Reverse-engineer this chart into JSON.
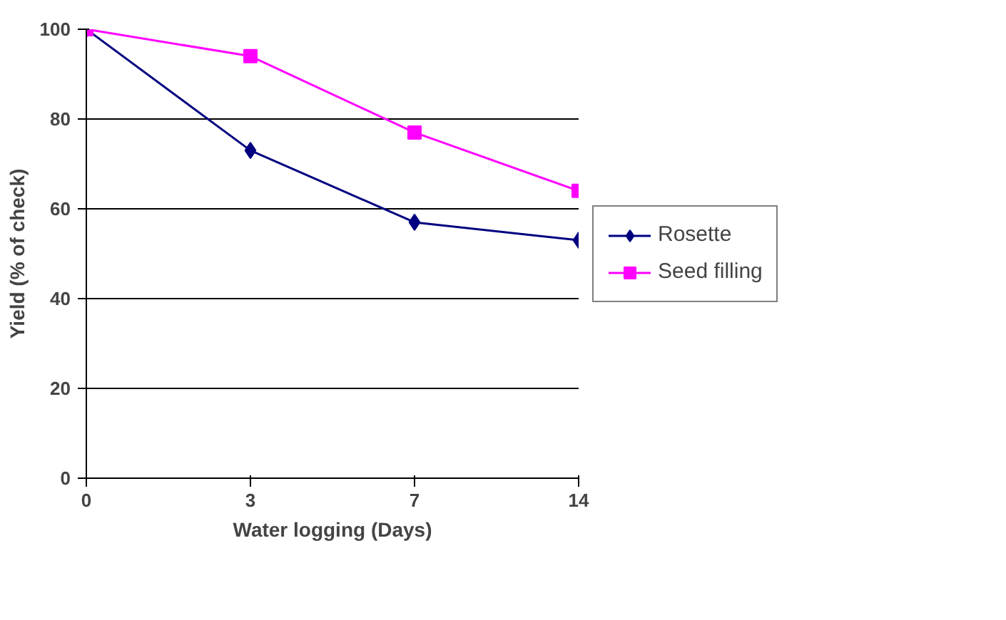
{
  "chart_data": {
    "type": "line",
    "xlabel": "Water logging (Days)",
    "ylabel": "Yield (% of check)",
    "categories": [
      "0",
      "3",
      "7",
      "14"
    ],
    "series": [
      {
        "name": "Rosette",
        "color": "#000080",
        "marker": "diamond",
        "values": [
          100,
          73,
          57,
          53
        ]
      },
      {
        "name": "Seed filling",
        "color": "#ff00ff",
        "marker": "square",
        "values": [
          100,
          94,
          77,
          64
        ]
      }
    ],
    "ylim": [
      0,
      100
    ],
    "yticks": [
      0,
      20,
      40,
      60,
      80,
      100
    ],
    "grid": "y",
    "legend": "right",
    "line_style": "solid"
  }
}
